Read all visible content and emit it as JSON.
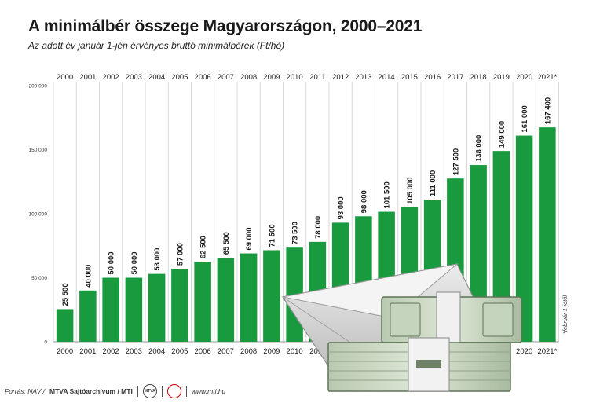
{
  "chart_data": {
    "type": "bar",
    "title": "A minimálbér összege Magyarországon, 2000–2021",
    "subtitle": "Az adott év január 1-jén érvényes bruttó minimálbérek (Ft/hó)",
    "categories": [
      "2000",
      "2001",
      "2002",
      "2003",
      "2004",
      "2005",
      "2006",
      "2007",
      "2008",
      "2009",
      "2010",
      "2011",
      "2012",
      "2013",
      "2014",
      "2015",
      "2016",
      "2017",
      "2018",
      "2019",
      "2020",
      "2021*"
    ],
    "values": [
      25500,
      40000,
      50000,
      50000,
      53000,
      57000,
      62500,
      65500,
      69000,
      71500,
      73500,
      78000,
      93000,
      98000,
      101500,
      105000,
      111000,
      127500,
      138000,
      149000,
      161000,
      167400
    ],
    "value_labels": [
      "25 500",
      "40 000",
      "50 000",
      "50 000",
      "53 000",
      "57 000",
      "62 500",
      "65 500",
      "69 000",
      "71 500",
      "73 500",
      "78 000",
      "93 000",
      "98 000",
      "101 500",
      "105 000",
      "111 000",
      "127 500",
      "138 000",
      "149 000",
      "161 000",
      "167 400"
    ],
    "ylim": [
      0,
      200000
    ],
    "yticks": [
      0,
      50000,
      100000,
      150000,
      200000
    ],
    "ytick_labels": [
      "0",
      "50 000",
      "100 000",
      "150 000",
      "200 000"
    ],
    "grid": "vertical",
    "bar_color": "#1a9a3f",
    "footnote": "*február 1-jétől"
  },
  "footer": {
    "source_prefix": "Forrás: NAV / ",
    "source_org": "MTVA Sajtóarchívum / MTI",
    "logo1_text": "MTVA",
    "url": "www.mti.hu"
  }
}
